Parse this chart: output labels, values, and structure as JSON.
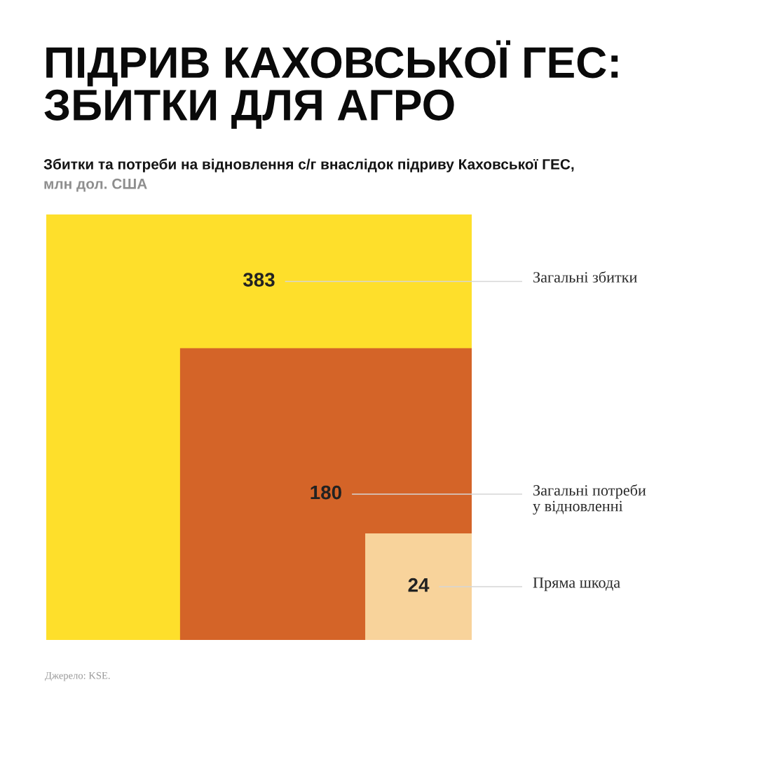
{
  "chart_data": {
    "type": "other",
    "title": "ПІДРИВ КАХОВСЬКОЇ ГЕС:\nЗБИТКИ ДЛЯ АГРО",
    "subtitle": "Збитки та потреби на відновлення с/г внаслідок підриву Каховської ГЕС,\nмлн дол. США",
    "categories": [
      "Загальні збитки",
      "Загальні потреби\nу відновленні",
      "Пряма шкода"
    ],
    "values": [
      383,
      180,
      24
    ],
    "colors": [
      "#fedf2b",
      "#d46428",
      "#f8d39b"
    ],
    "data_labels": true,
    "annotations": [
      "Джерело: KSE."
    ]
  }
}
